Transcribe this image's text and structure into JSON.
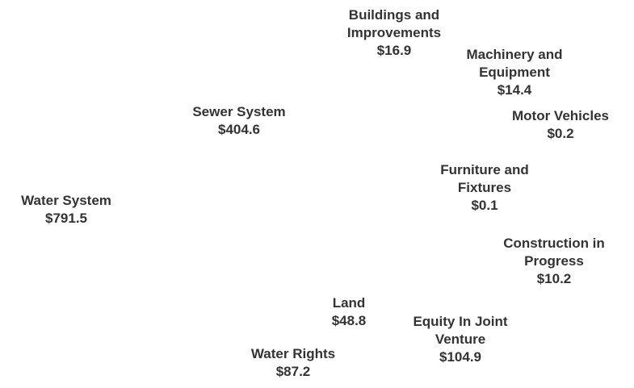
{
  "chart_data": {
    "type": "pie",
    "categories": [
      "Water System",
      "Sewer System",
      "Buildings and Improvements",
      "Machinery and Equipment",
      "Motor Vehicles",
      "Furniture and Fixtures",
      "Construction in Progress",
      "Equity In Joint Venture",
      "Land",
      "Water Rights"
    ],
    "values": [
      791.5,
      404.6,
      16.9,
      14.4,
      0.2,
      0.1,
      10.2,
      104.9,
      48.8,
      87.2
    ],
    "value_labels": [
      "$791.5",
      "$404.6",
      "$16.9",
      "$14.4",
      "$0.2",
      "$0.1",
      "$10.2",
      "$104.9",
      "$48.8",
      "$87.2"
    ],
    "colors": [
      "#9c9cc2",
      "#dcdcea",
      "#f2d9b8",
      "#3f9c62",
      "#bcbcd6",
      "#e4e4f0",
      "#ececf4",
      "#ffffff",
      "#f2d256",
      "#3d9464"
    ]
  }
}
